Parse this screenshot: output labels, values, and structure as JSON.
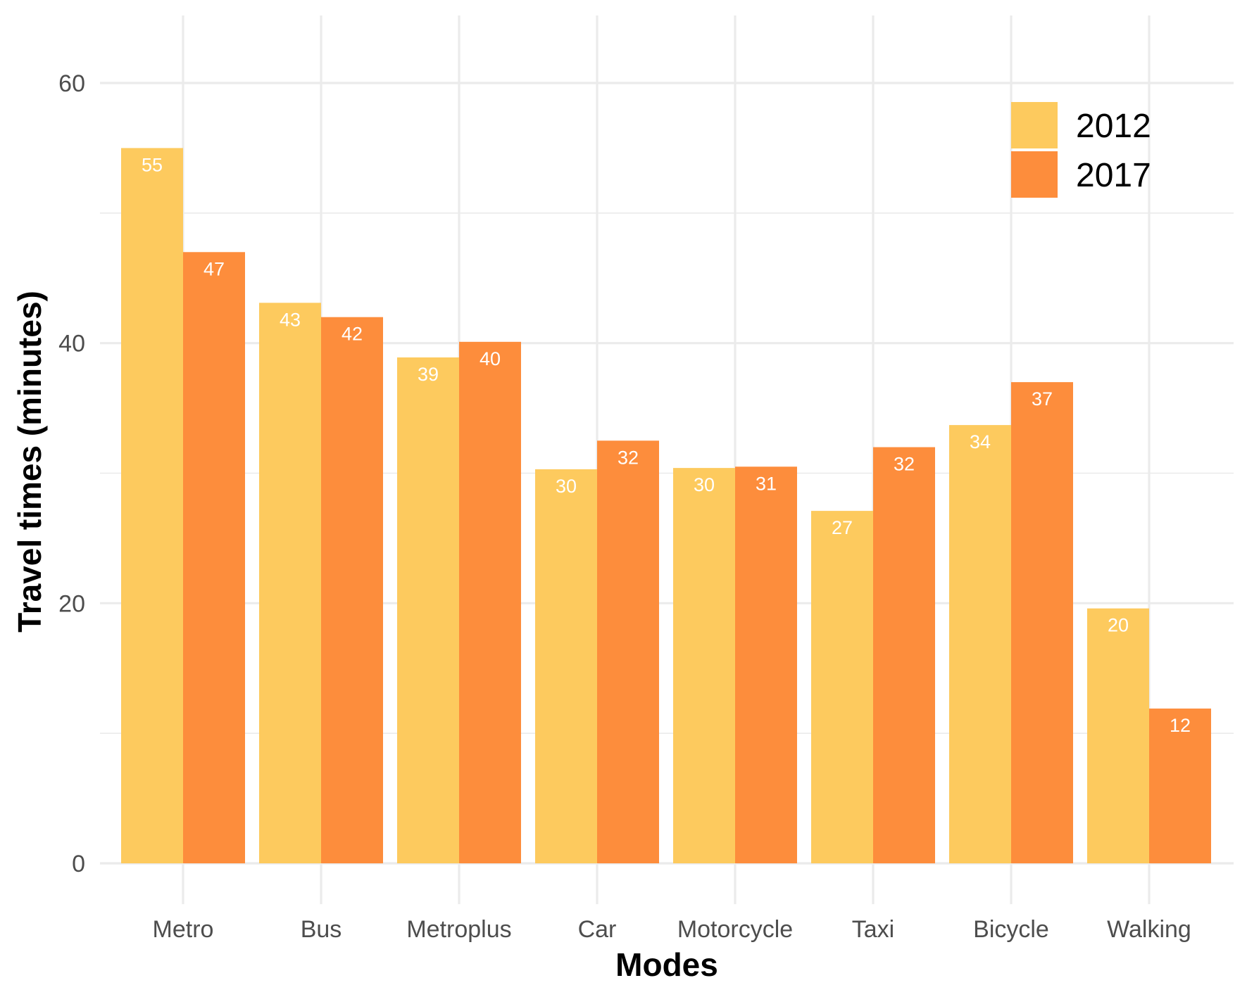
{
  "chart_data": {
    "type": "bar",
    "title": "",
    "xlabel": "Modes",
    "ylabel": "Travel times (minutes)",
    "categories": [
      "Metro",
      "Bus",
      "Metroplus",
      "Car",
      "Motorcycle",
      "Taxi",
      "Bicycle",
      "Walking"
    ],
    "series": [
      {
        "name": "2012",
        "color": "#FDCA5E",
        "values": [
          55,
          43.1,
          38.9,
          30.3,
          30.4,
          27.1,
          33.7,
          19.6
        ],
        "labels": [
          "55",
          "43",
          "39",
          "30",
          "30",
          "27",
          "34",
          "20"
        ]
      },
      {
        "name": "2017",
        "color": "#FD8D3C",
        "values": [
          47,
          42,
          40.1,
          32.5,
          30.5,
          32,
          37,
          11.9
        ],
        "labels": [
          "47",
          "42",
          "40",
          "32",
          "31",
          "32",
          "37",
          "12"
        ]
      }
    ],
    "ylim": [
      0,
      60
    ],
    "yticks": [
      0,
      20,
      40,
      60
    ],
    "grid": true,
    "legend_position": "top-right"
  }
}
